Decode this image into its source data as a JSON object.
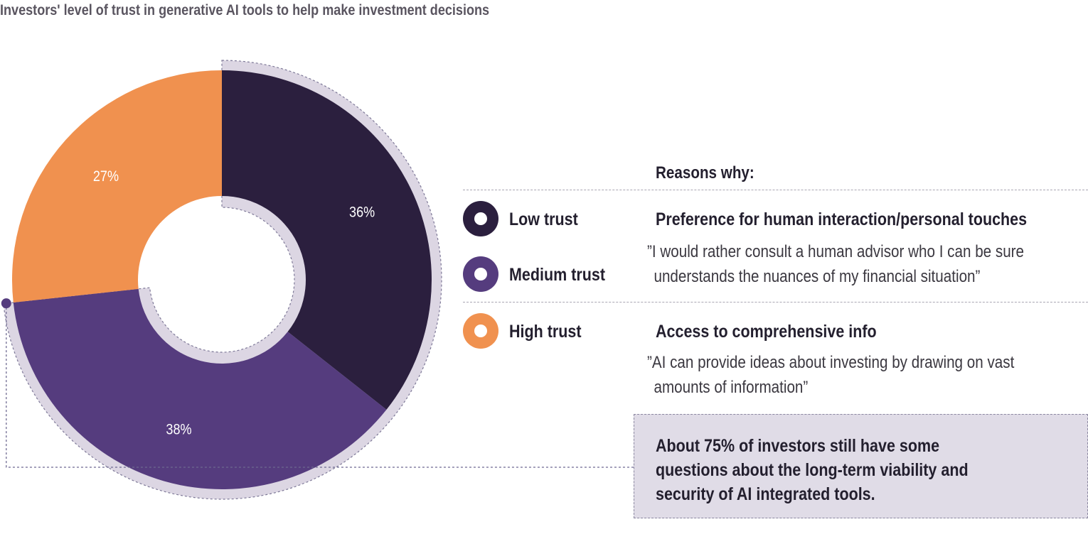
{
  "colors": {
    "low": "#2b1f3e",
    "medium": "#553c7e",
    "high": "#f0914f",
    "ring": "#dcd6e3",
    "accent": "#553c7e"
  },
  "chart_data": {
    "type": "pie",
    "title": "Investors' level of trust in generative AI tools to help make investment decisions",
    "slices": [
      {
        "name": "Low trust",
        "value": 36,
        "label": "36%",
        "color": "#2b1f3e"
      },
      {
        "name": "Medium trust",
        "value": 38,
        "label": "38%",
        "color": "#553c7e"
      },
      {
        "name": "High trust",
        "value": 27,
        "label": "27%",
        "color": "#f0914f"
      }
    ],
    "legend_position": "right"
  },
  "reasons": {
    "header": "Reasons why:",
    "items": [
      {
        "title": "Preference for human interaction/personal touches",
        "quote_lines": [
          "”I would rather consult a human advisor who I can be sure",
          "understands the nuances of my financial situation”"
        ]
      },
      {
        "title": "Access to comprehensive info",
        "quote_lines": [
          "”AI can provide ideas about investing by drawing on vast",
          "amounts of information”"
        ]
      }
    ]
  },
  "callout": {
    "lines": [
      "About 75% of investors still have some",
      "questions about the long-term viability and",
      "security of AI integrated tools."
    ]
  }
}
